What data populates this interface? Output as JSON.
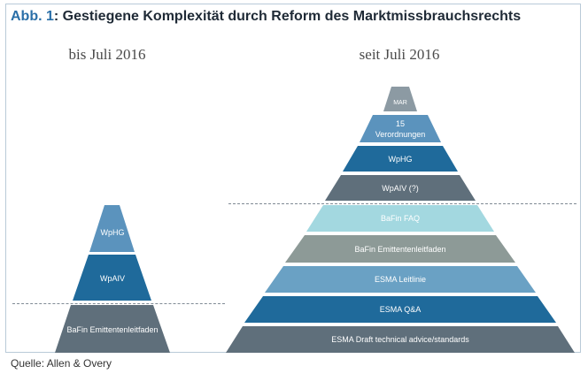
{
  "header": {
    "figure_number": "Abb. 1",
    "title_rest": ": Gestiegene Komplexität durch Reform des Marktmissbrauchsrechts"
  },
  "left": {
    "heading": "bis Juli 2016",
    "levels": [
      {
        "label": "WpHG",
        "color": "#5b93bd"
      },
      {
        "label": "WpAIV",
        "color": "#1f6a9b"
      },
      {
        "label": "BaFin Emittentenleitfaden",
        "color": "#5f6f7b"
      }
    ]
  },
  "right": {
    "heading": "seit Juli 2016",
    "levels": [
      {
        "label": "MAR",
        "color": "#8c9aa3"
      },
      {
        "label": "15 Verordnungen",
        "lines": [
          "15",
          "Verordnungen"
        ],
        "color": "#5b93bd"
      },
      {
        "label": "WpHG",
        "color": "#1f6a9b"
      },
      {
        "label": "WpAIV (?)",
        "color": "#5f6f7b"
      },
      {
        "label": "BaFin FAQ",
        "color": "#a3d8e0"
      },
      {
        "label": "BaFin Emittentenleitfaden",
        "color": "#8d9a97"
      },
      {
        "label": "ESMA Leitlinie",
        "color": "#6aa1c4"
      },
      {
        "label": "ESMA Q&A",
        "color": "#1f6a9b"
      },
      {
        "label": "ESMA Draft technical advice/standards",
        "color": "#5f6f7b"
      }
    ]
  },
  "source": "Quelle: Allen & Overy"
}
